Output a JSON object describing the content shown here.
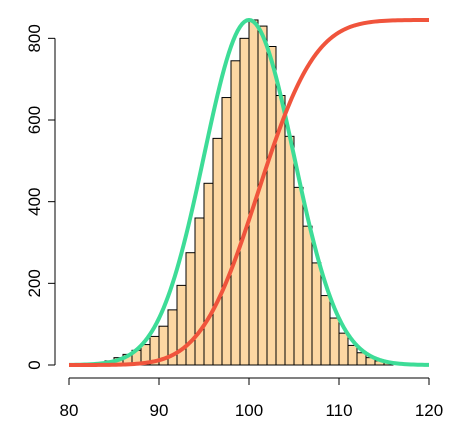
{
  "chart_data": {
    "type": "bar",
    "title": "",
    "xlabel": "",
    "ylabel": "",
    "xlim": [
      80,
      120
    ],
    "ylim": [
      0,
      840
    ],
    "x_ticks": [
      80,
      90,
      100,
      110,
      120
    ],
    "y_ticks": [
      0,
      200,
      400,
      600,
      800
    ],
    "x_tick_labels": [
      "80",
      "90",
      "100",
      "110",
      "120"
    ],
    "y_tick_labels": [
      "0",
      "200",
      "400",
      "600",
      "800"
    ],
    "grid": false,
    "legend": "none",
    "bin_edges": [
      81,
      82,
      83,
      84,
      85,
      86,
      87,
      88,
      89,
      90,
      91,
      92,
      93,
      94,
      95,
      96,
      97,
      98,
      99,
      100,
      101,
      102,
      103,
      104,
      105,
      106,
      107,
      108,
      109,
      110,
      111,
      112,
      113,
      114,
      115,
      116
    ],
    "values": [
      2,
      4,
      6,
      10,
      18,
      26,
      36,
      50,
      70,
      95,
      135,
      195,
      275,
      360,
      445,
      555,
      655,
      745,
      800,
      845,
      830,
      780,
      660,
      560,
      435,
      340,
      250,
      170,
      115,
      78,
      48,
      30,
      18,
      10,
      5
    ],
    "series": [
      {
        "type": "line",
        "values_note": "normal density curve",
        "color": "#3ddc97",
        "mean": 100,
        "peak": 845,
        "sd": 5
      },
      {
        "type": "line",
        "values_note": "cumulative curve",
        "color": "#f0543c",
        "mean": 101,
        "max": 845,
        "sd": 5
      }
    ],
    "bar_fill": "#fcd7a3",
    "bar_stroke": "#000000"
  }
}
